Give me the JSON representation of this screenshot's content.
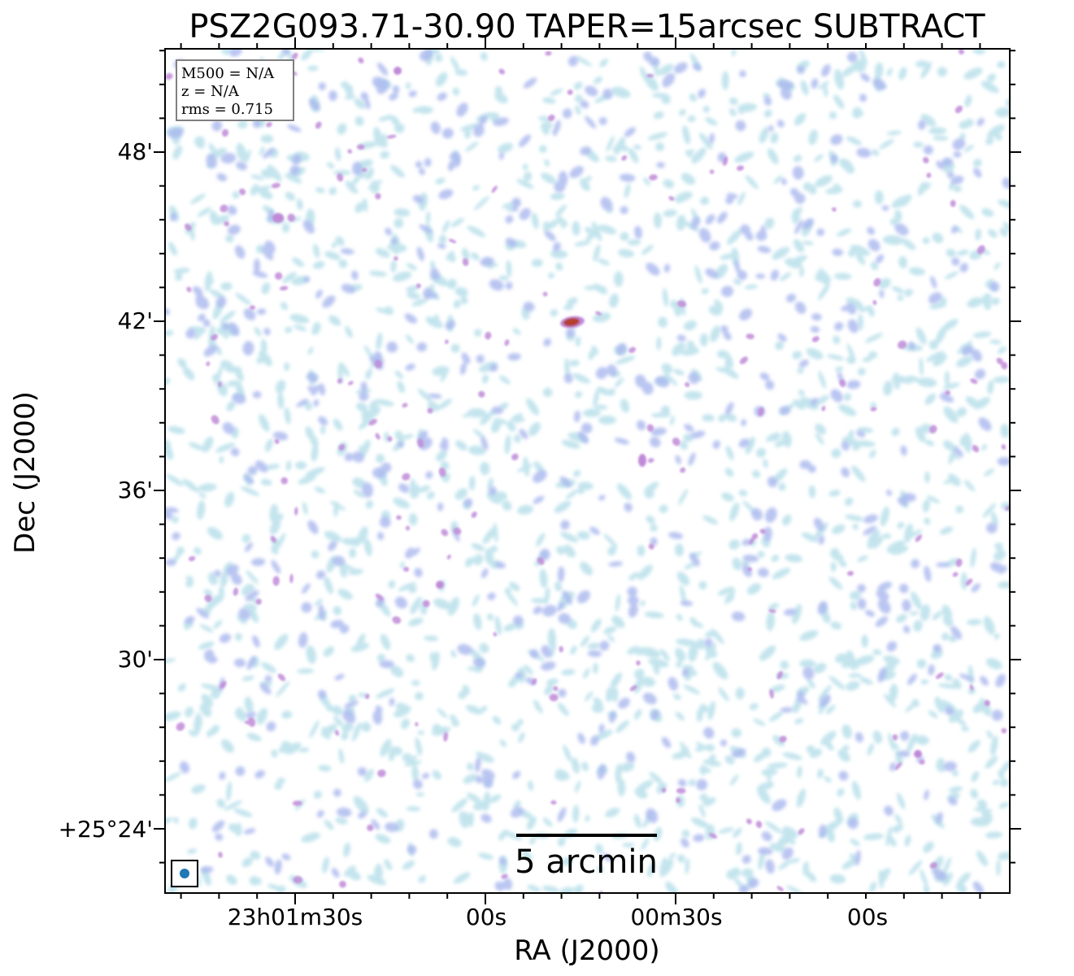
{
  "title": "PSZ2G093.71-30.90 TAPER=15arcsec SUBTRACT",
  "axes": {
    "x_label": "RA (J2000)",
    "y_label": "Dec (J2000)",
    "x_ticks": [
      "23h01m30s",
      "00s",
      "00m30s",
      "00s"
    ],
    "y_ticks": [
      "48'",
      "42'",
      "36'",
      "30'",
      "+25°24'"
    ]
  },
  "info_box": {
    "lines": [
      "M500 = N/A",
      "z = N/A",
      "rms = 0.715"
    ]
  },
  "scale_bar": {
    "label": "5 arcmin"
  },
  "beam": {
    "color": "#1f77b4"
  },
  "colors": {
    "noise_light": "#b9e0ea",
    "noise_mid": "#a9b7ee",
    "noise_strong": "#c08ad8",
    "source_peak": "#b5402f"
  }
}
